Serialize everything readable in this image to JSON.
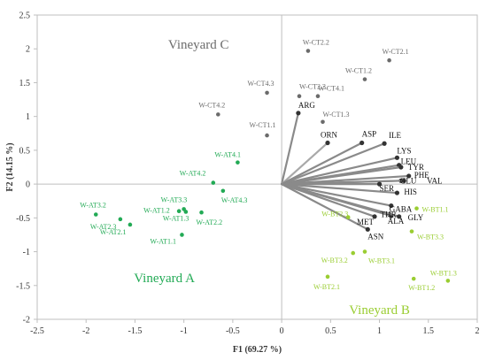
{
  "chart_data": {
    "type": "scatter",
    "xlabel": "F1 (69.27 %)",
    "ylabel": "F2 (14.15 %)",
    "xlim": [
      -2.5,
      2
    ],
    "ylim": [
      -2,
      2.5
    ],
    "xticks": [
      "-2.5",
      "-2",
      "-1.5",
      "-1",
      "-0.5",
      "0",
      "0.5",
      "1",
      "1.5",
      "2"
    ],
    "yticks": [
      "-2",
      "-1.5",
      "-1",
      "-0.5",
      "0",
      "0.5",
      "1",
      "1.5",
      "2",
      "2.5"
    ],
    "grid": false,
    "groups": [
      {
        "name": "Vineyard C",
        "color": "#6b6b6b",
        "points": [
          {
            "label": "W-CT2.2",
            "x": 0.27,
            "y": 1.97
          },
          {
            "label": "W-CT2.1",
            "x": 1.1,
            "y": 1.83
          },
          {
            "label": "W-CT1.2",
            "x": 0.85,
            "y": 1.55
          },
          {
            "label": "W-CT4.3",
            "x": -0.15,
            "y": 1.35
          },
          {
            "label": "W-CT2.3",
            "x": 0.18,
            "y": 1.3
          },
          {
            "label": "W-CT4.1",
            "x": 0.37,
            "y": 1.3
          },
          {
            "label": "W-CT4.2",
            "x": -0.65,
            "y": 1.03
          },
          {
            "label": "W-CT1.3",
            "x": 0.42,
            "y": 0.92
          },
          {
            "label": "W-CT1.1",
            "x": -0.15,
            "y": 0.72
          }
        ]
      },
      {
        "name": "Vineyard A",
        "color": "#22aa55",
        "points": [
          {
            "label": "W-AT4.1",
            "x": -0.45,
            "y": 0.32
          },
          {
            "label": "W-AT4.2",
            "x": -0.7,
            "y": 0.02
          },
          {
            "label": "W-AT4.3",
            "x": -0.6,
            "y": -0.1
          },
          {
            "label": "W-AT3.3",
            "x": -1.0,
            "y": -0.37
          },
          {
            "label": "W-AT1.2",
            "x": -1.05,
            "y": -0.4
          },
          {
            "label": "W-AT1.3",
            "x": -0.98,
            "y": -0.41
          },
          {
            "label": "W-AT3.2",
            "x": -1.9,
            "y": -0.45
          },
          {
            "label": "W-AT2.3",
            "x": -1.65,
            "y": -0.52
          },
          {
            "label": "W-AT2.1",
            "x": -1.55,
            "y": -0.6
          },
          {
            "label": "W-AT2.2",
            "x": -0.82,
            "y": -0.42
          },
          {
            "label": "W-AT1.1",
            "x": -1.02,
            "y": -0.75
          }
        ]
      },
      {
        "name": "Vineyard B",
        "color": "#9acd32",
        "points": [
          {
            "label": "W-BT1.1",
            "x": 1.38,
            "y": -0.36
          },
          {
            "label": "W-BT2.3",
            "x": 0.68,
            "y": -0.49
          },
          {
            "label": "W-BT3.3",
            "x": 1.33,
            "y": -0.7
          },
          {
            "label": "W-BT3.1",
            "x": 0.85,
            "y": -1.0
          },
          {
            "label": "W-BT3.2",
            "x": 0.73,
            "y": -1.02
          },
          {
            "label": "W-BT2.1",
            "x": 0.47,
            "y": -1.37
          },
          {
            "label": "W-BT1.2",
            "x": 1.35,
            "y": -1.4
          },
          {
            "label": "W-BT1.3",
            "x": 1.7,
            "y": -1.43
          }
        ]
      }
    ],
    "variables": [
      {
        "label": "ARG",
        "x": 0.17,
        "y": 1.05
      },
      {
        "label": "ORN",
        "x": 0.47,
        "y": 0.61
      },
      {
        "label": "ASP",
        "x": 0.82,
        "y": 0.61
      },
      {
        "label": "ILE",
        "x": 1.05,
        "y": 0.6
      },
      {
        "label": "LYS",
        "x": 1.18,
        "y": 0.39
      },
      {
        "label": "LEU",
        "x": 1.2,
        "y": 0.28
      },
      {
        "label": "TYR",
        "x": 1.22,
        "y": 0.25
      },
      {
        "label": "PHE",
        "x": 1.3,
        "y": 0.12
      },
      {
        "label": "GLU",
        "x": 1.22,
        "y": 0.05
      },
      {
        "label": "VAL",
        "x": 1.25,
        "y": 0.05
      },
      {
        "label": "SER",
        "x": 1.0,
        "y": 0.0
      },
      {
        "label": "HIS",
        "x": 1.18,
        "y": -0.13
      },
      {
        "label": "GABA",
        "x": 1.12,
        "y": -0.32
      },
      {
        "label": "THR",
        "x": 1.1,
        "y": -0.45
      },
      {
        "label": "ALA",
        "x": 1.12,
        "y": -0.47
      },
      {
        "label": "GLY",
        "x": 1.2,
        "y": -0.48
      },
      {
        "label": "MET",
        "x": 0.95,
        "y": -0.48
      },
      {
        "label": "ASN",
        "x": 0.88,
        "y": -0.67
      }
    ],
    "group_labels": [
      {
        "text": "Vineyard C",
        "x": -0.85,
        "y": 2.0,
        "color": "#6b6b6b"
      },
      {
        "text": "Vineyard A",
        "x": -1.2,
        "y": -1.45,
        "color": "#22aa55"
      },
      {
        "text": "Vineyard B",
        "x": 1.0,
        "y": -1.92,
        "color": "#9acd32"
      }
    ]
  }
}
